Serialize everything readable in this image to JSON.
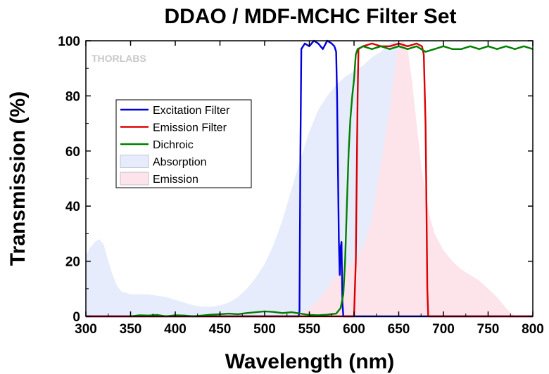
{
  "chart_data": {
    "type": "line",
    "title": "DDAO / MDF-MCHC Filter Set",
    "xlabel": "Wavelength (nm)",
    "ylabel": "Transmission (%)",
    "xlim": [
      300,
      800
    ],
    "ylim": [
      0,
      100
    ],
    "x_ticks": [
      300,
      350,
      400,
      450,
      500,
      550,
      600,
      650,
      700,
      750,
      800
    ],
    "y_ticks": [
      0,
      20,
      40,
      60,
      80,
      100
    ],
    "grid": false,
    "legend_position": "upper-left",
    "watermark": "THORLABS",
    "series": [
      {
        "name": "Excitation Filter",
        "kind": "line",
        "color": "#0000dd",
        "points": [
          [
            300,
            0
          ],
          [
            538,
            0
          ],
          [
            539,
            2
          ],
          [
            540,
            60
          ],
          [
            541,
            97
          ],
          [
            545,
            99
          ],
          [
            550,
            98
          ],
          [
            555,
            100
          ],
          [
            560,
            99
          ],
          [
            565,
            97
          ],
          [
            570,
            100
          ],
          [
            575,
            99
          ],
          [
            578,
            98
          ],
          [
            580,
            96
          ],
          [
            581,
            80
          ],
          [
            582,
            55
          ],
          [
            583,
            28
          ],
          [
            584,
            15
          ],
          [
            585,
            25
          ],
          [
            586,
            27
          ],
          [
            587,
            5
          ],
          [
            588,
            0
          ],
          [
            800,
            0
          ]
        ]
      },
      {
        "name": "Emission Filter",
        "kind": "line",
        "color": "#dd0000",
        "points": [
          [
            300,
            0
          ],
          [
            600,
            0
          ],
          [
            602,
            20
          ],
          [
            604,
            80
          ],
          [
            605,
            97
          ],
          [
            610,
            98
          ],
          [
            620,
            99
          ],
          [
            630,
            98
          ],
          [
            640,
            98
          ],
          [
            650,
            99
          ],
          [
            660,
            98
          ],
          [
            670,
            99
          ],
          [
            676,
            98
          ],
          [
            678,
            95
          ],
          [
            680,
            70
          ],
          [
            681,
            40
          ],
          [
            682,
            10
          ],
          [
            683,
            0
          ],
          [
            800,
            0
          ]
        ]
      },
      {
        "name": "Dichroic",
        "kind": "line",
        "color": "#008000",
        "points": [
          [
            350,
            0
          ],
          [
            360,
            0.4
          ],
          [
            370,
            0.3
          ],
          [
            380,
            0.5
          ],
          [
            390,
            0
          ],
          [
            400,
            0.4
          ],
          [
            410,
            0.3
          ],
          [
            420,
            0
          ],
          [
            430,
            0.3
          ],
          [
            440,
            0.6
          ],
          [
            450,
            0.8
          ],
          [
            460,
            1
          ],
          [
            470,
            0.8
          ],
          [
            480,
            1.2
          ],
          [
            490,
            1.5
          ],
          [
            500,
            1.8
          ],
          [
            510,
            1.6
          ],
          [
            520,
            1.2
          ],
          [
            530,
            1.5
          ],
          [
            540,
            1
          ],
          [
            550,
            0.5
          ],
          [
            560,
            0.4
          ],
          [
            570,
            0.6
          ],
          [
            580,
            1
          ],
          [
            585,
            3
          ],
          [
            588,
            8
          ],
          [
            590,
            20
          ],
          [
            592,
            40
          ],
          [
            594,
            60
          ],
          [
            596,
            72
          ],
          [
            598,
            80
          ],
          [
            600,
            86
          ],
          [
            602,
            95
          ],
          [
            604,
            97
          ],
          [
            610,
            98
          ],
          [
            620,
            97
          ],
          [
            630,
            98
          ],
          [
            640,
            97
          ],
          [
            650,
            98
          ],
          [
            660,
            97
          ],
          [
            670,
            98
          ],
          [
            680,
            96
          ],
          [
            690,
            97
          ],
          [
            700,
            98
          ],
          [
            710,
            97
          ],
          [
            720,
            97
          ],
          [
            730,
            98
          ],
          [
            740,
            97
          ],
          [
            750,
            98
          ],
          [
            760,
            97
          ],
          [
            770,
            98
          ],
          [
            780,
            97
          ],
          [
            790,
            98
          ],
          [
            800,
            97
          ]
        ]
      },
      {
        "name": "Absorption",
        "kind": "area",
        "color": "#e6ecfb",
        "points": [
          [
            300,
            22
          ],
          [
            305,
            25
          ],
          [
            310,
            27
          ],
          [
            315,
            28
          ],
          [
            320,
            26
          ],
          [
            325,
            20
          ],
          [
            330,
            15
          ],
          [
            335,
            11
          ],
          [
            340,
            9
          ],
          [
            350,
            8
          ],
          [
            360,
            8
          ],
          [
            370,
            8
          ],
          [
            380,
            7.5
          ],
          [
            390,
            7
          ],
          [
            400,
            6
          ],
          [
            410,
            5
          ],
          [
            420,
            4
          ],
          [
            430,
            3.5
          ],
          [
            440,
            3.5
          ],
          [
            450,
            4
          ],
          [
            460,
            5
          ],
          [
            470,
            7
          ],
          [
            480,
            10
          ],
          [
            490,
            14
          ],
          [
            500,
            19
          ],
          [
            510,
            26
          ],
          [
            520,
            35
          ],
          [
            530,
            46
          ],
          [
            540,
            57
          ],
          [
            550,
            67
          ],
          [
            560,
            75
          ],
          [
            570,
            80
          ],
          [
            580,
            84
          ],
          [
            590,
            87
          ],
          [
            600,
            89
          ],
          [
            610,
            91
          ],
          [
            620,
            94
          ],
          [
            630,
            96
          ],
          [
            640,
            99
          ],
          [
            645,
            100
          ],
          [
            650,
            98
          ],
          [
            655,
            88
          ],
          [
            660,
            72
          ],
          [
            665,
            55
          ],
          [
            670,
            42
          ],
          [
            675,
            34
          ],
          [
            680,
            30
          ],
          [
            690,
            22
          ],
          [
            700,
            16
          ],
          [
            710,
            11
          ],
          [
            720,
            7
          ],
          [
            730,
            4
          ],
          [
            740,
            2
          ],
          [
            750,
            1
          ],
          [
            760,
            0.5
          ],
          [
            770,
            0
          ]
        ]
      },
      {
        "name": "Emission",
        "kind": "area",
        "color": "#fde4ea",
        "points": [
          [
            530,
            0
          ],
          [
            540,
            1
          ],
          [
            550,
            3
          ],
          [
            560,
            6
          ],
          [
            570,
            10
          ],
          [
            580,
            15
          ],
          [
            590,
            18
          ],
          [
            600,
            20
          ],
          [
            610,
            25
          ],
          [
            620,
            35
          ],
          [
            630,
            55
          ],
          [
            640,
            75
          ],
          [
            645,
            88
          ],
          [
            650,
            99
          ],
          [
            655,
            100
          ],
          [
            660,
            97
          ],
          [
            665,
            85
          ],
          [
            670,
            70
          ],
          [
            675,
            55
          ],
          [
            680,
            45
          ],
          [
            685,
            36
          ],
          [
            690,
            30
          ],
          [
            700,
            24
          ],
          [
            710,
            20
          ],
          [
            720,
            17
          ],
          [
            730,
            15
          ],
          [
            740,
            13
          ],
          [
            750,
            10
          ],
          [
            760,
            7
          ],
          [
            770,
            3
          ],
          [
            780,
            0
          ]
        ]
      }
    ]
  }
}
